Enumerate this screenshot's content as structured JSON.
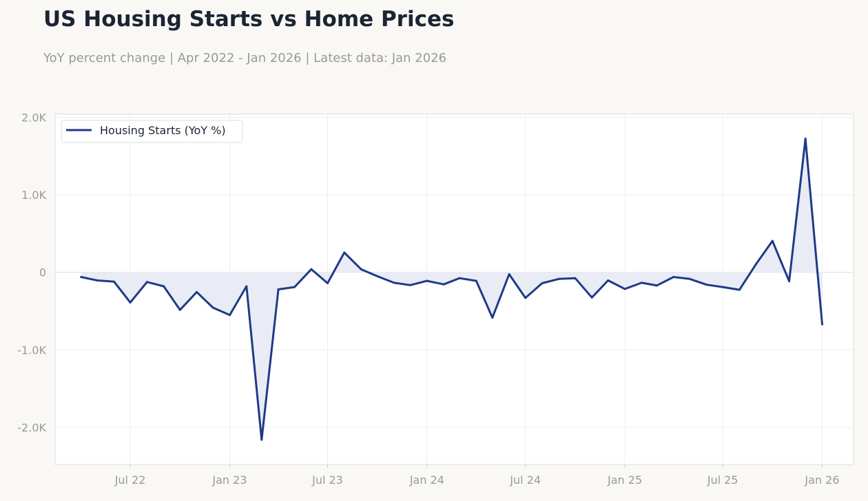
{
  "header": {
    "title": "US Housing Starts vs Home Prices",
    "subtitle": "YoY percent change | Apr 2022 - Jan 2026 | Latest data: Jan 2026"
  },
  "colors": {
    "line": "#1f3a87",
    "fill": "#e9ecf5",
    "grid": "#eeeeee",
    "plot_border": "#dddddd",
    "background": "#f9f8f5"
  },
  "chart_data": {
    "type": "area",
    "title": "US Housing Starts vs Home Prices",
    "subtitle": "YoY percent change | Apr 2022 - Jan 2026 | Latest data: Jan 2026",
    "xlabel": "",
    "ylabel": "",
    "x_range": [
      "2022-02-12",
      "2026-02-28"
    ],
    "ylim": [
      -2480,
      2040
    ],
    "grid": true,
    "legend": {
      "placement": "top-left",
      "entries": [
        "Housing Starts (YoY %)"
      ]
    },
    "y_ticks": [
      {
        "value": 2000,
        "label": "2.0K"
      },
      {
        "value": 1000,
        "label": "1.0K"
      },
      {
        "value": 0,
        "label": "0"
      },
      {
        "value": -1000,
        "label": "-1.0K"
      },
      {
        "value": -2000,
        "label": "-2.0K"
      }
    ],
    "x_ticks": [
      {
        "date": "2022-07-01",
        "label": "Jul 22"
      },
      {
        "date": "2023-01-01",
        "label": "Jan 23"
      },
      {
        "date": "2023-07-01",
        "label": "Jul 23"
      },
      {
        "date": "2024-01-01",
        "label": "Jan 24"
      },
      {
        "date": "2024-07-01",
        "label": "Jul 24"
      },
      {
        "date": "2025-01-01",
        "label": "Jan 25"
      },
      {
        "date": "2025-07-01",
        "label": "Jul 25"
      },
      {
        "date": "2026-01-01",
        "label": "Jan 26"
      }
    ],
    "series": [
      {
        "name": "Housing Starts (YoY %)",
        "x": [
          "2022-04-01",
          "2022-05-01",
          "2022-06-01",
          "2022-07-01",
          "2022-08-01",
          "2022-09-01",
          "2022-10-01",
          "2022-11-01",
          "2022-12-01",
          "2023-01-01",
          "2023-02-01",
          "2023-03-01",
          "2023-04-01",
          "2023-05-01",
          "2023-06-01",
          "2023-07-01",
          "2023-08-01",
          "2023-09-01",
          "2023-10-01",
          "2023-11-01",
          "2023-12-01",
          "2024-01-01",
          "2024-02-01",
          "2024-03-01",
          "2024-04-01",
          "2024-05-01",
          "2024-06-01",
          "2024-07-01",
          "2024-08-01",
          "2024-09-01",
          "2024-10-01",
          "2024-11-01",
          "2024-12-01",
          "2025-01-01",
          "2025-02-01",
          "2025-03-01",
          "2025-04-01",
          "2025-05-01",
          "2025-06-01",
          "2025-07-01",
          "2025-08-01",
          "2025-09-01",
          "2025-10-01",
          "2025-11-01",
          "2025-12-01",
          "2026-01-01"
        ],
        "values": [
          -60,
          -105,
          -120,
          -390,
          -125,
          -180,
          -485,
          -255,
          -455,
          -550,
          -180,
          -2160,
          -220,
          -190,
          40,
          -140,
          255,
          40,
          -50,
          -135,
          -165,
          -110,
          -155,
          -75,
          -110,
          -585,
          -25,
          -330,
          -140,
          -85,
          -75,
          -325,
          -105,
          -215,
          -135,
          -170,
          -60,
          -85,
          -160,
          -190,
          -225,
          110,
          405,
          -115,
          1725,
          -670
        ]
      }
    ]
  }
}
